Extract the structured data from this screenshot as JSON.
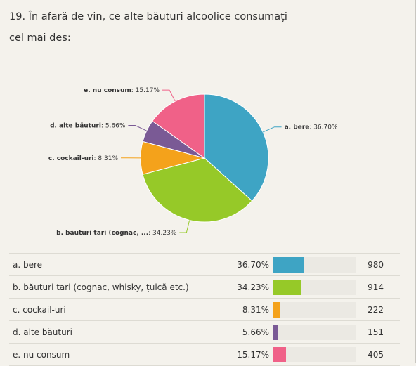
{
  "question": {
    "title": "19. În afară de vin, ce alte băuturi alcoolice consumați cel mai des:"
  },
  "chart_data": {
    "type": "pie",
    "start_angle_deg": 0,
    "direction": "clockwise",
    "slices": [
      {
        "pie_label": "a. bere",
        "value": 36.7,
        "display": "36.70%",
        "color": "#3ea4c4"
      },
      {
        "pie_label": "b. băuturi tari (cognac, ...",
        "value": 34.23,
        "display": "34.23%",
        "color": "#96c928"
      },
      {
        "pie_label": "c. cockail-uri",
        "value": 8.31,
        "display": "8.31%",
        "color": "#f4a21b"
      },
      {
        "pie_label": "d. alte băuturi",
        "value": 5.66,
        "display": "5.66%",
        "color": "#7a5a95"
      },
      {
        "pie_label": "e. nu consum",
        "value": 15.17,
        "display": "15.17%",
        "color": "#f06188"
      }
    ]
  },
  "table": {
    "rows": [
      {
        "label": "a. bere",
        "percent": "36.70%",
        "fraction": 0.367,
        "count": "980",
        "color": "#3ea4c4"
      },
      {
        "label": "b. băuturi tari (cognac, whisky, țuică etc.)",
        "percent": "34.23%",
        "fraction": 0.3423,
        "count": "914",
        "color": "#96c928"
      },
      {
        "label": "c. cockail-uri",
        "percent": "8.31%",
        "fraction": 0.0831,
        "count": "222",
        "color": "#f4a21b"
      },
      {
        "label": "d. alte băuturi",
        "percent": "5.66%",
        "fraction": 0.0566,
        "count": "151",
        "color": "#7a5a95"
      },
      {
        "label": "e. nu consum",
        "percent": "15.17%",
        "fraction": 0.1517,
        "count": "405",
        "color": "#f06188"
      }
    ]
  }
}
